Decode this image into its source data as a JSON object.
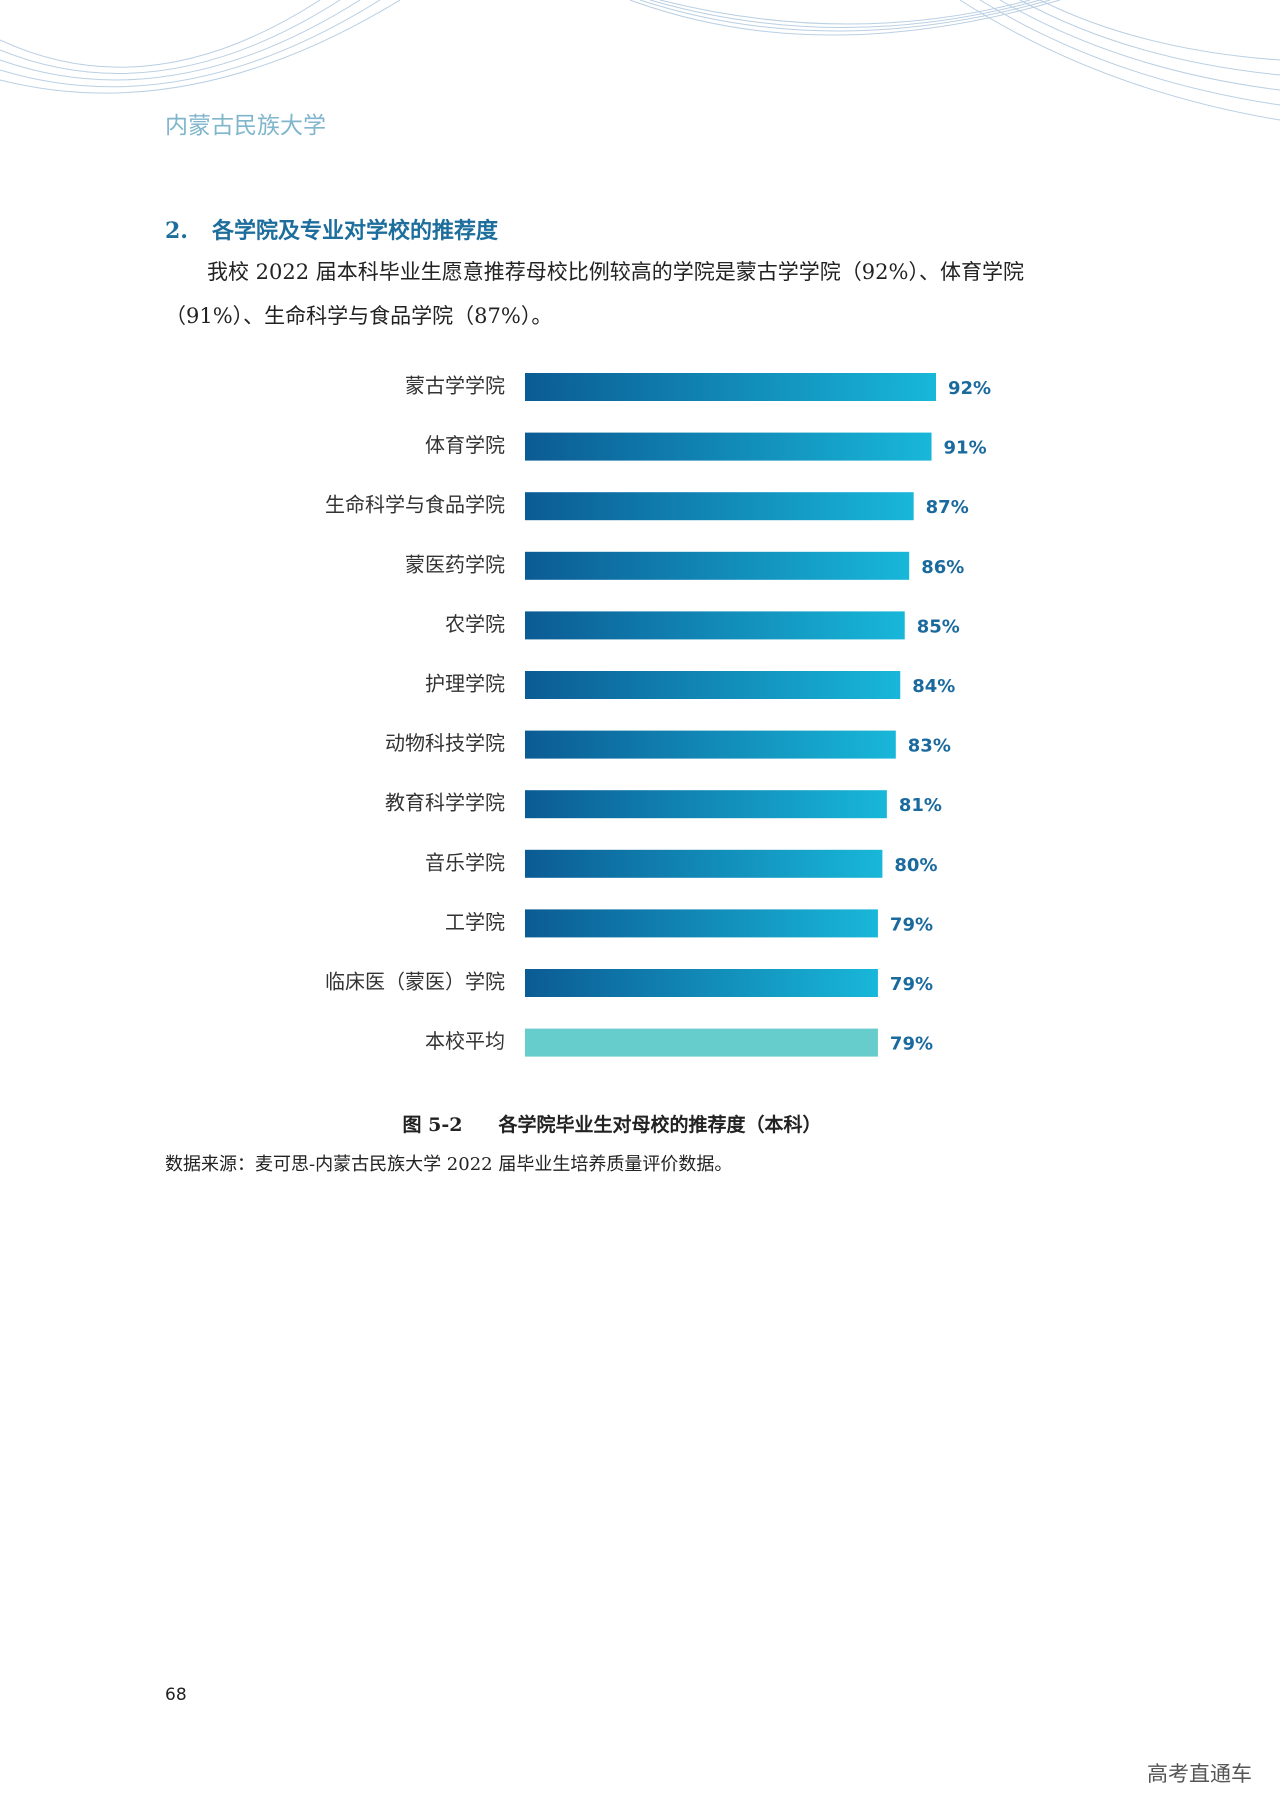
{
  "header": {
    "title": "内蒙古民族大学"
  },
  "section": {
    "number": "2.",
    "title": "各学院及专业对学校的推荐度",
    "paragraph": "我校 2022 届本科毕业生愿意推荐母校比例较高的学院是蒙古学学院（92%）、体育学院（91%）、生命科学与食品学院（87%）。"
  },
  "chart_data": {
    "type": "bar",
    "orientation": "horizontal",
    "categories": [
      "蒙古学学院",
      "体育学院",
      "生命科学与食品学院",
      "蒙医药学院",
      "农学院",
      "护理学院",
      "动物科技学院",
      "教育科学学院",
      "音乐学院",
      "工学院",
      "临床医（蒙医）学院",
      "本校平均"
    ],
    "values": [
      92,
      91,
      87,
      86,
      85,
      84,
      83,
      81,
      80,
      79,
      79,
      79
    ],
    "value_labels": [
      "92%",
      "91%",
      "87%",
      "86%",
      "85%",
      "84%",
      "83%",
      "81%",
      "80%",
      "79%",
      "79%",
      "79%"
    ],
    "gradient": [
      "#0b5b94",
      "#18b7d9"
    ],
    "highlight_index": 11,
    "highlight_color": "#66cdcc",
    "value_label_color": "#1a6a9e",
    "figure_number": "图 5-2",
    "title": "各学院毕业生对母校的推荐度（本科）"
  },
  "source": "数据来源：麦可思-内蒙古民族大学 2022 届毕业生培养质量评价数据。",
  "page_number": "68",
  "watermark": "高考直通车"
}
